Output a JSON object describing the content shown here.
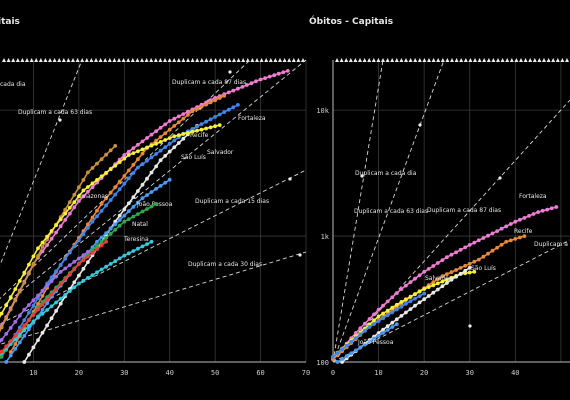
{
  "chart_data": [
    {
      "type": "line",
      "title": "Casos - Capitais",
      "title_visible": "itais",
      "x_ticks": [
        "10",
        "20",
        "30",
        "40",
        "50",
        "60",
        "70"
      ],
      "x_axis_max": 70,
      "y_scale": "log",
      "guide_lines": [
        {
          "label": "Duplicam a cada dia",
          "label_visible": "cada dia"
        },
        {
          "label": "Duplicam a cada 63 dias"
        },
        {
          "label": "Duplicam a cada 87 dias"
        },
        {
          "label": "Duplicam a cada 15 dias"
        },
        {
          "label": "Duplicam a cada 30 dias"
        }
      ],
      "series": [
        {
          "name": "Fortaleza",
          "color": "#f07cd4",
          "x": [
            1,
            10,
            20,
            30,
            40,
            50,
            60,
            66
          ],
          "y": [
            140,
            600,
            1900,
            4400,
            8200,
            12500,
            17500,
            20500
          ]
        },
        {
          "name": "Recife",
          "color": "#e8893a",
          "x": [
            5,
            15,
            25,
            35,
            45,
            52
          ],
          "y": [
            120,
            520,
            1800,
            5000,
            9800,
            13000
          ]
        },
        {
          "name": "São Luís",
          "color": "#e8e8e8",
          "x": [
            8,
            18,
            28,
            38,
            46
          ],
          "y": [
            100,
            380,
            1300,
            4000,
            7500
          ]
        },
        {
          "name": "Salvador",
          "color": "#3f86e8",
          "x": [
            3,
            13,
            23,
            33,
            43,
            55
          ],
          "y": [
            110,
            420,
            1300,
            3500,
            6500,
            11000
          ]
        },
        {
          "name": "Amazonas",
          "color": "#c8923c",
          "x": [
            2,
            12,
            22,
            28
          ],
          "y": [
            160,
            820,
            3200,
            5200
          ]
        },
        {
          "name": "",
          "color": "#f6f03c",
          "x": [
            1,
            11,
            21,
            31,
            41,
            51
          ],
          "y": [
            180,
            800,
            2300,
            4400,
            6200,
            7600
          ]
        },
        {
          "name": "João Pessoa",
          "color": "#4a9cf0",
          "x": [
            4,
            14,
            24,
            34,
            40
          ],
          "y": [
            100,
            330,
            900,
            2000,
            2800
          ]
        },
        {
          "name": "Natal",
          "color": "#2ca84a",
          "x": [
            2,
            12,
            22,
            30,
            37
          ],
          "y": [
            100,
            300,
            720,
            1300,
            1800
          ]
        },
        {
          "name": "Teresina",
          "color": "#36c9dc",
          "x": [
            1,
            10,
            20,
            30,
            36
          ],
          "y": [
            100,
            210,
            420,
            700,
            900
          ]
        },
        {
          "name": "",
          "color": "#f03a3a",
          "x": [
            2,
            11,
            20,
            26
          ],
          "y": [
            110,
            260,
            600,
            900
          ]
        },
        {
          "name": "",
          "color": "#9f6fe8",
          "x": [
            1,
            8,
            16,
            22
          ],
          "y": [
            120,
            260,
            520,
            750
          ]
        }
      ]
    },
    {
      "type": "line",
      "title": "Óbitos - Capitais",
      "x_ticks": [
        "0",
        "10",
        "20",
        "30",
        "40"
      ],
      "y_ticks": [
        "100",
        "1k",
        "10k"
      ],
      "y_scale": "log",
      "ylim": [
        100,
        20000
      ],
      "guide_lines": [
        {
          "label": "Duplicam a cada dia"
        },
        {
          "label": "Duplicam a cada 63 dias"
        },
        {
          "label": "Duplicam a cada 87 dias"
        },
        {
          "label": "Duplicam a cada 15 dias",
          "label_visible": "Duplicam a cada"
        }
      ],
      "series": [
        {
          "name": "Fortaleza",
          "color": "#f07cd4",
          "x": [
            0,
            5,
            10,
            15,
            20,
            25,
            30,
            35,
            40,
            45,
            49
          ],
          "y": [
            105,
            170,
            260,
            380,
            520,
            680,
            850,
            1050,
            1300,
            1550,
            1700
          ]
        },
        {
          "name": "Recife",
          "color": "#e8893a",
          "x": [
            0,
            8,
            16,
            24,
            32,
            38,
            42
          ],
          "y": [
            105,
            190,
            310,
            480,
            650,
            900,
            1000
          ]
        },
        {
          "name": "Salvador",
          "color": "#f6f03c",
          "x": [
            0,
            5,
            10,
            15,
            20,
            25,
            28,
            31
          ],
          "y": [
            110,
            160,
            230,
            300,
            380,
            450,
            500,
            520
          ]
        },
        {
          "name": "São Luís",
          "color": "#e8e8e8",
          "x": [
            2,
            10,
            18,
            26,
            30
          ],
          "y": [
            100,
            170,
            280,
            450,
            560
          ]
        },
        {
          "name": "",
          "color": "#3f86e8",
          "x": [
            0,
            8,
            16,
            20
          ],
          "y": [
            110,
            190,
            290,
            350
          ]
        },
        {
          "name": "João Pessoa",
          "color": "#4a9cf0",
          "x": [
            1,
            8,
            14
          ],
          "y": [
            100,
            145,
            200
          ]
        }
      ]
    }
  ]
}
